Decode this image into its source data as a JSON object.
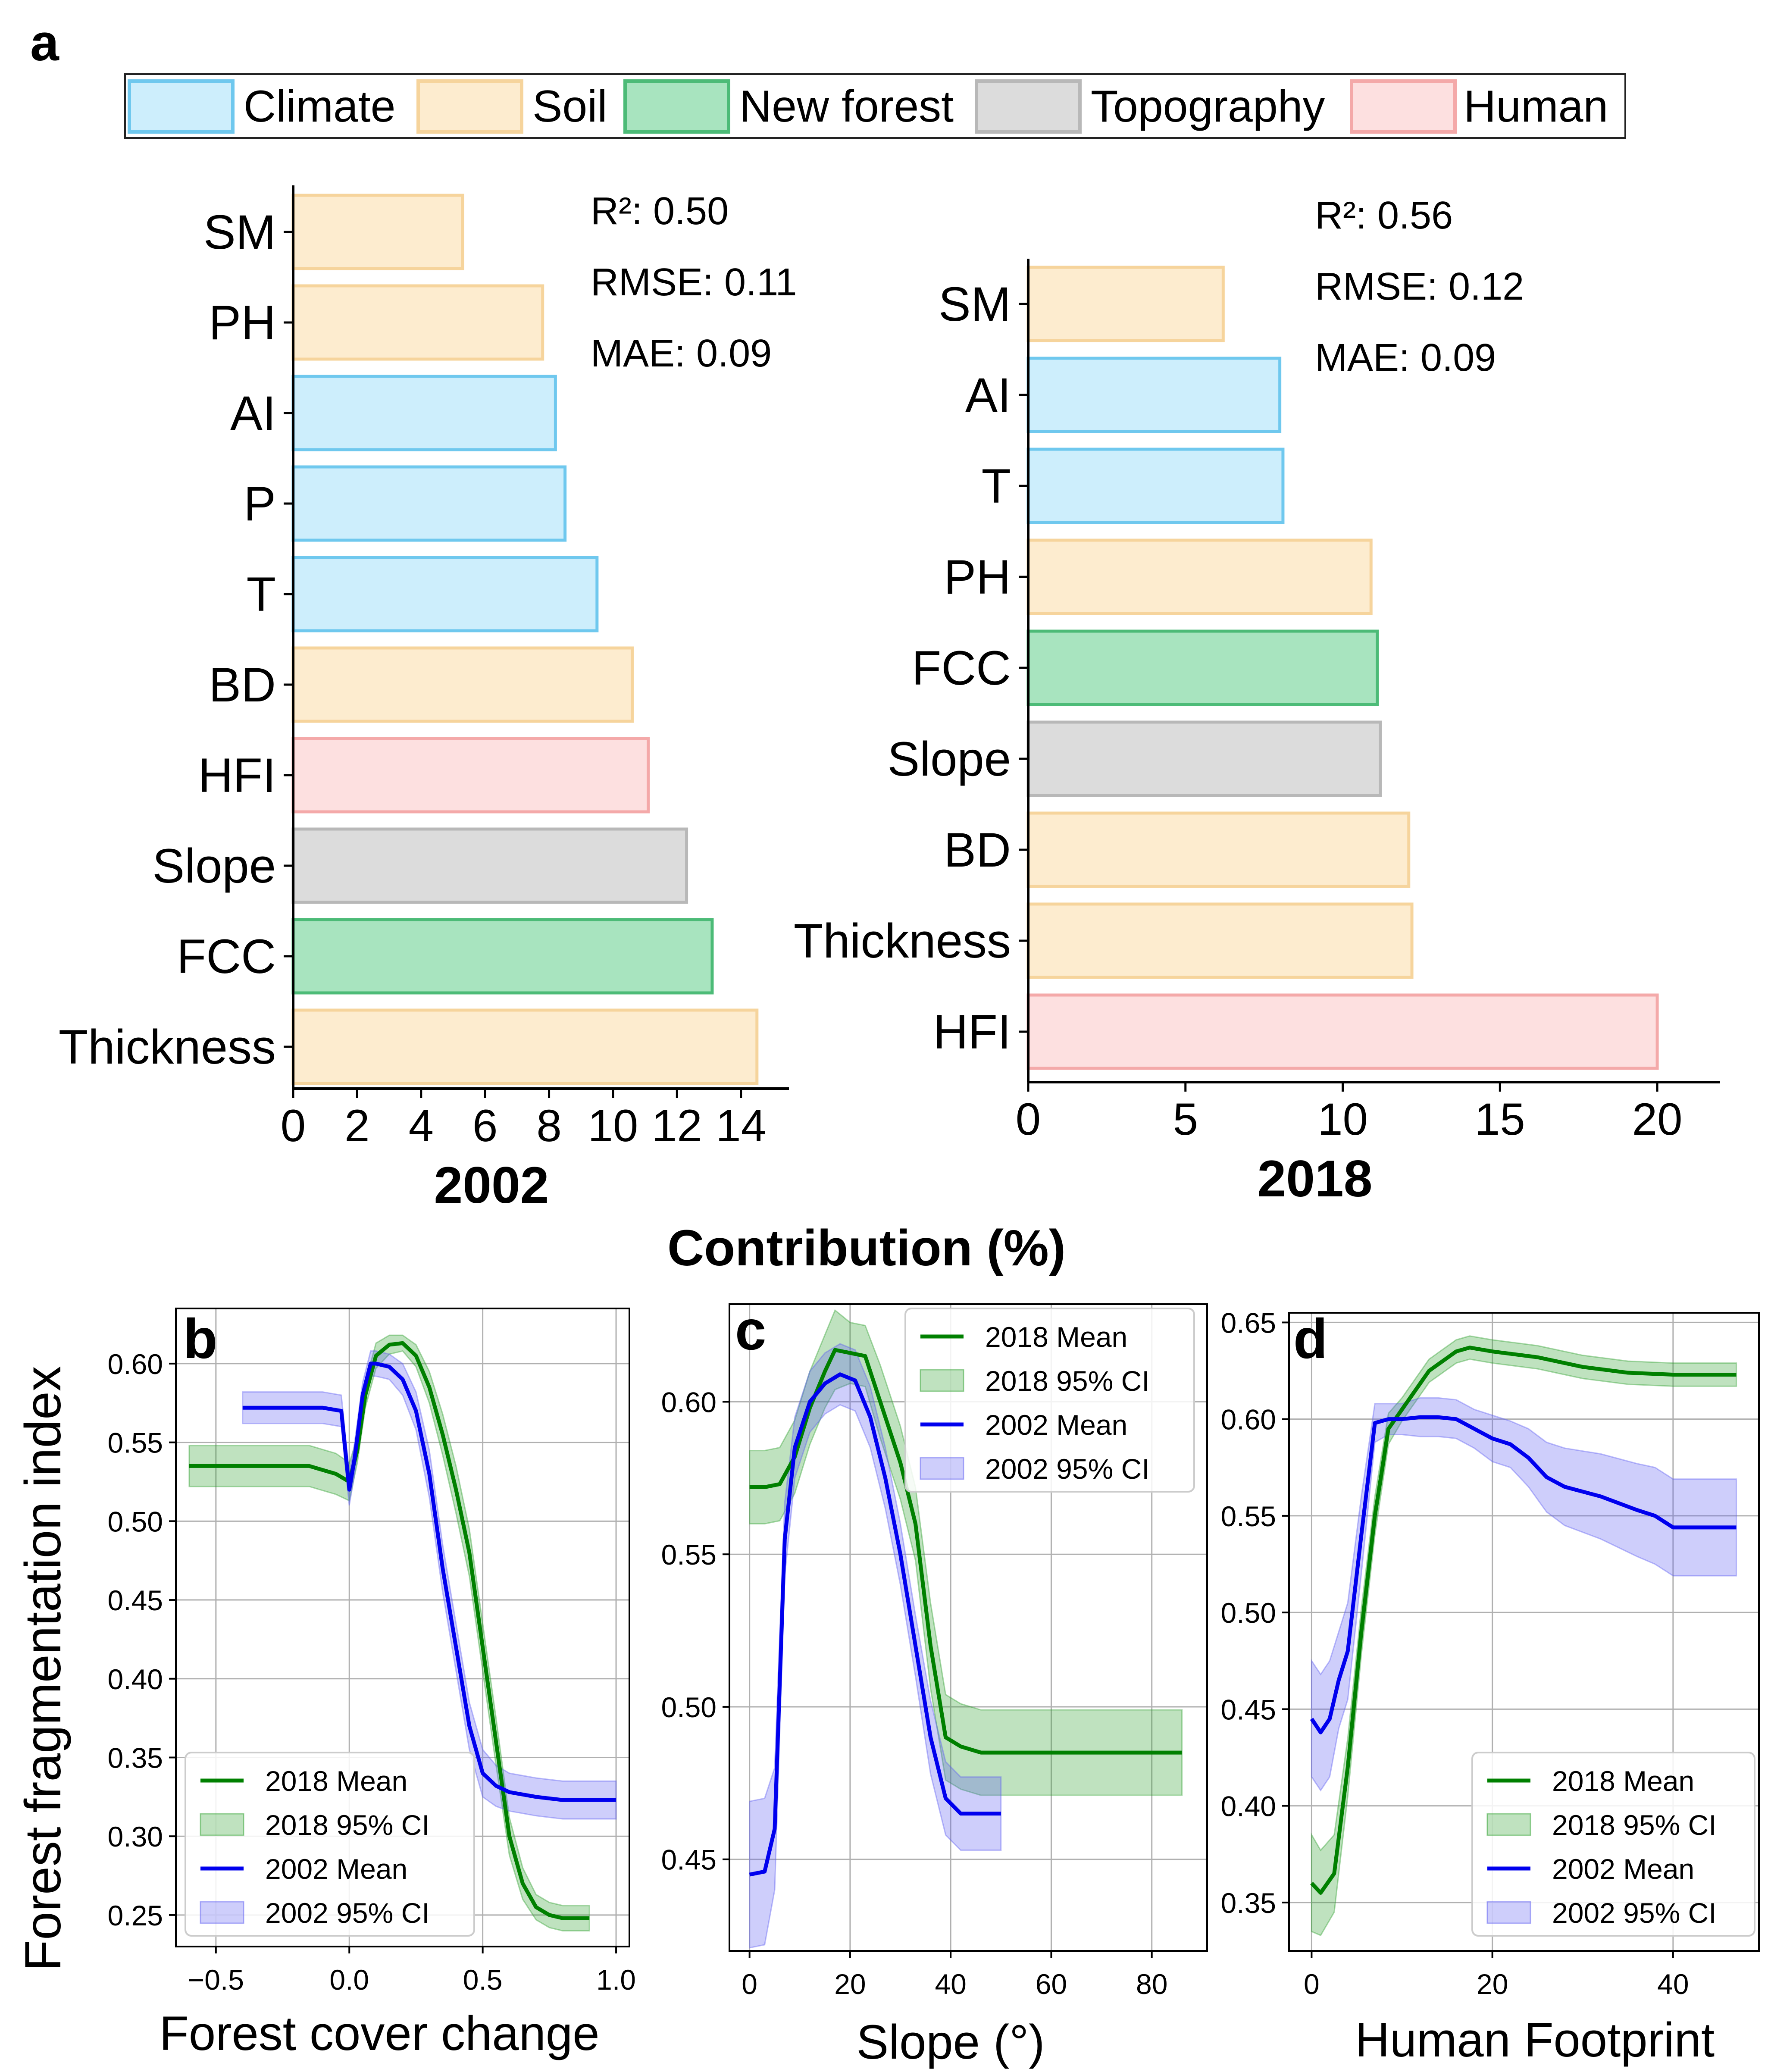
{
  "panel_labels": {
    "a": "a",
    "b": "b",
    "c": "c",
    "d": "d"
  },
  "legend_a": [
    {
      "label": "Climate",
      "fill": "#cdeefc",
      "stroke": "#6fc8ee"
    },
    {
      "label": "Soil",
      "fill": "#fdeccf",
      "stroke": "#f6d49c"
    },
    {
      "label": "New forest",
      "fill": "#a8e4bf",
      "stroke": "#4cbb77"
    },
    {
      "label": "Topography",
      "fill": "#dcdcdc",
      "stroke": "#b8b8b8"
    },
    {
      "label": "Human",
      "fill": "#fde0e0",
      "stroke": "#f4a9a9"
    }
  ],
  "contribution_label": "Contribution (%)",
  "fragmentation_label": "Forest fragmentation index",
  "chart_data": [
    {
      "id": "a2002",
      "type": "bar",
      "orientation": "horizontal",
      "title": "2002",
      "xlabel": "Contribution (%)",
      "xlim": [
        0,
        15.5
      ],
      "xticks": [
        0,
        2,
        4,
        6,
        8,
        10,
        12,
        14
      ],
      "categories": [
        "SM",
        "PH",
        "AI",
        "P",
        "T",
        "BD",
        "HFI",
        "Slope",
        "FCC",
        "Thickness"
      ],
      "values": [
        5.3,
        7.8,
        8.2,
        8.5,
        9.5,
        10.6,
        11.1,
        12.3,
        13.1,
        14.5
      ],
      "groups": [
        "Soil",
        "Soil",
        "Climate",
        "Climate",
        "Climate",
        "Soil",
        "Human",
        "Topography",
        "New forest",
        "Soil"
      ],
      "stats": [
        "R²: 0.50",
        "RMSE: 0.11",
        "MAE: 0.09"
      ]
    },
    {
      "id": "a2018",
      "type": "bar",
      "orientation": "horizontal",
      "title": "2018",
      "xlabel": "Contribution (%)",
      "xlim": [
        0,
        22
      ],
      "xticks": [
        0,
        5,
        10,
        15,
        20
      ],
      "categories": [
        "SM",
        "AI",
        "T",
        "PH",
        "FCC",
        "Slope",
        "BD",
        "Thickness",
        "HFI"
      ],
      "values": [
        6.2,
        8.0,
        8.1,
        10.9,
        11.1,
        11.2,
        12.1,
        12.2,
        20.0
      ],
      "groups": [
        "Soil",
        "Climate",
        "Climate",
        "Soil",
        "New forest",
        "Topography",
        "Soil",
        "Soil",
        "Human"
      ],
      "stats": [
        "R²: 0.56",
        "RMSE: 0.12",
        "MAE: 0.09"
      ]
    },
    {
      "id": "b",
      "type": "line",
      "xlabel": "Forest cover  change",
      "ylabel": "Forest fragmentation index",
      "xlim": [
        -0.65,
        1.05
      ],
      "ylim": [
        0.23,
        0.635
      ],
      "xticks": [
        -0.5,
        0.0,
        0.5,
        1.0
      ],
      "xtick_labels": [
        "−0.5",
        "0.0",
        "0.5",
        "1.0"
      ],
      "yticks": [
        0.25,
        0.3,
        0.35,
        0.4,
        0.45,
        0.5,
        0.55,
        0.6
      ],
      "ytick_labels": [
        "0.25",
        "0.30",
        "0.35",
        "0.40",
        "0.45",
        "0.50",
        "0.55",
        "0.60"
      ],
      "legend_position": "bottom-left",
      "legend": [
        "2018 Mean",
        "2018 95% CI",
        "2002 Mean",
        "2002 95% CI"
      ],
      "series": [
        {
          "name": "2018",
          "color": "#008000",
          "ci_color": "#2ca02c",
          "x": [
            -0.6,
            -0.45,
            -0.3,
            -0.15,
            -0.05,
            0.0,
            0.03,
            0.06,
            0.1,
            0.15,
            0.2,
            0.25,
            0.3,
            0.35,
            0.4,
            0.45,
            0.5,
            0.55,
            0.6,
            0.65,
            0.7,
            0.75,
            0.8,
            0.9
          ],
          "mean": [
            0.535,
            0.535,
            0.535,
            0.535,
            0.53,
            0.525,
            0.545,
            0.58,
            0.605,
            0.612,
            0.613,
            0.605,
            0.585,
            0.555,
            0.52,
            0.48,
            0.42,
            0.36,
            0.3,
            0.27,
            0.255,
            0.25,
            0.248,
            0.248
          ],
          "ci": [
            0.013,
            0.013,
            0.013,
            0.013,
            0.013,
            0.012,
            0.008,
            0.008,
            0.008,
            0.006,
            0.005,
            0.007,
            0.01,
            0.013,
            0.015,
            0.015,
            0.015,
            0.015,
            0.012,
            0.01,
            0.008,
            0.008,
            0.008,
            0.008
          ]
        },
        {
          "name": "2002",
          "color": "#0000ee",
          "ci_color": "#5c5cf2",
          "x": [
            -0.4,
            -0.25,
            -0.1,
            -0.03,
            0.0,
            0.02,
            0.05,
            0.08,
            0.1,
            0.15,
            0.2,
            0.25,
            0.3,
            0.35,
            0.4,
            0.45,
            0.5,
            0.55,
            0.6,
            0.7,
            0.8,
            1.0
          ],
          "mean": [
            0.572,
            0.572,
            0.572,
            0.57,
            0.52,
            0.54,
            0.58,
            0.6,
            0.6,
            0.598,
            0.59,
            0.57,
            0.53,
            0.47,
            0.42,
            0.37,
            0.34,
            0.332,
            0.328,
            0.325,
            0.323,
            0.323
          ],
          "ci": [
            0.01,
            0.01,
            0.01,
            0.01,
            0.01,
            0.01,
            0.008,
            0.008,
            0.008,
            0.008,
            0.01,
            0.012,
            0.015,
            0.015,
            0.015,
            0.015,
            0.015,
            0.013,
            0.012,
            0.012,
            0.012,
            0.012
          ]
        }
      ]
    },
    {
      "id": "c",
      "type": "line",
      "xlabel": "Slope (°)",
      "xlim": [
        -4,
        91
      ],
      "ylim": [
        0.42,
        0.632
      ],
      "xticks": [
        0,
        20,
        40,
        60,
        80
      ],
      "xtick_labels": [
        "0",
        "20",
        "40",
        "60",
        "80"
      ],
      "yticks": [
        0.45,
        0.5,
        0.55,
        0.6
      ],
      "ytick_labels": [
        "0.45",
        "0.50",
        "0.55",
        "0.60"
      ],
      "legend_position": "top-right",
      "legend": [
        "2018 Mean",
        "2018 95% CI",
        "2002 Mean",
        "2002 95% CI"
      ],
      "series": [
        {
          "name": "2018",
          "color": "#008000",
          "ci_color": "#2ca02c",
          "x": [
            0,
            3,
            6,
            9,
            12,
            15,
            17,
            20,
            23,
            26,
            30,
            33,
            36,
            39,
            42,
            46,
            50,
            60,
            70,
            86
          ],
          "mean": [
            0.572,
            0.572,
            0.573,
            0.582,
            0.598,
            0.61,
            0.617,
            0.616,
            0.615,
            0.6,
            0.58,
            0.56,
            0.52,
            0.49,
            0.487,
            0.485,
            0.485,
            0.485,
            0.485,
            0.485
          ],
          "ci": [
            0.012,
            0.012,
            0.012,
            0.012,
            0.012,
            0.012,
            0.013,
            0.01,
            0.01,
            0.012,
            0.012,
            0.012,
            0.014,
            0.014,
            0.014,
            0.014,
            0.014,
            0.014,
            0.014,
            0.014
          ]
        },
        {
          "name": "2002",
          "color": "#0000ee",
          "ci_color": "#5c5cf2",
          "x": [
            0,
            3,
            5,
            7,
            9,
            12,
            15,
            18,
            21,
            24,
            27,
            30,
            33,
            36,
            39,
            42,
            46,
            50
          ],
          "mean": [
            0.445,
            0.446,
            0.46,
            0.555,
            0.585,
            0.6,
            0.606,
            0.609,
            0.607,
            0.595,
            0.575,
            0.55,
            0.52,
            0.49,
            0.47,
            0.465,
            0.465,
            0.465
          ],
          "ci": [
            0.024,
            0.024,
            0.02,
            0.012,
            0.01,
            0.01,
            0.01,
            0.01,
            0.01,
            0.01,
            0.01,
            0.01,
            0.01,
            0.012,
            0.012,
            0.012,
            0.012,
            0.012
          ]
        }
      ]
    },
    {
      "id": "d",
      "type": "line",
      "xlabel": "Human Footprint",
      "xlim": [
        -2.5,
        49.5
      ],
      "ylim": [
        0.325,
        0.655
      ],
      "xticks": [
        0,
        20,
        40
      ],
      "xtick_labels": [
        "0",
        "20",
        "40"
      ],
      "yticks": [
        0.35,
        0.4,
        0.45,
        0.5,
        0.55,
        0.6,
        0.65
      ],
      "ytick_labels": [
        "0.35",
        "0.40",
        "0.45",
        "0.50",
        "0.55",
        "0.60",
        "0.65"
      ],
      "legend_position": "bottom-right",
      "legend": [
        "2018 Mean",
        "2018 95% CI",
        "2002 Mean",
        "2002 95% CI"
      ],
      "series": [
        {
          "name": "2018",
          "color": "#008000",
          "ci_color": "#2ca02c",
          "x": [
            0,
            1,
            2.5,
            4,
            5.5,
            7,
            8.5,
            10,
            11.5,
            13,
            14.5,
            16,
            17.5,
            20,
            25,
            30,
            35,
            40,
            47
          ],
          "mean": [
            0.36,
            0.355,
            0.365,
            0.42,
            0.49,
            0.55,
            0.595,
            0.605,
            0.615,
            0.625,
            0.63,
            0.635,
            0.637,
            0.635,
            0.632,
            0.627,
            0.624,
            0.623,
            0.623
          ],
          "ci": [
            0.025,
            0.022,
            0.02,
            0.015,
            0.012,
            0.01,
            0.008,
            0.006,
            0.006,
            0.006,
            0.006,
            0.006,
            0.006,
            0.006,
            0.006,
            0.006,
            0.006,
            0.006,
            0.006
          ]
        },
        {
          "name": "2002",
          "color": "#0000ee",
          "ci_color": "#5c5cf2",
          "x": [
            0,
            1,
            2,
            3,
            4,
            5.5,
            7,
            8.5,
            10,
            12,
            14,
            16,
            18,
            20,
            22,
            24,
            26,
            28,
            32,
            36,
            38,
            40,
            47
          ],
          "mean": [
            0.445,
            0.438,
            0.445,
            0.465,
            0.48,
            0.54,
            0.598,
            0.6,
            0.6,
            0.601,
            0.601,
            0.6,
            0.595,
            0.59,
            0.587,
            0.58,
            0.57,
            0.565,
            0.56,
            0.553,
            0.55,
            0.544,
            0.544
          ],
          "ci": [
            0.03,
            0.03,
            0.03,
            0.025,
            0.025,
            0.02,
            0.01,
            0.008,
            0.008,
            0.01,
            0.01,
            0.01,
            0.01,
            0.012,
            0.012,
            0.015,
            0.018,
            0.02,
            0.022,
            0.024,
            0.025,
            0.025,
            0.025
          ]
        }
      ]
    }
  ]
}
